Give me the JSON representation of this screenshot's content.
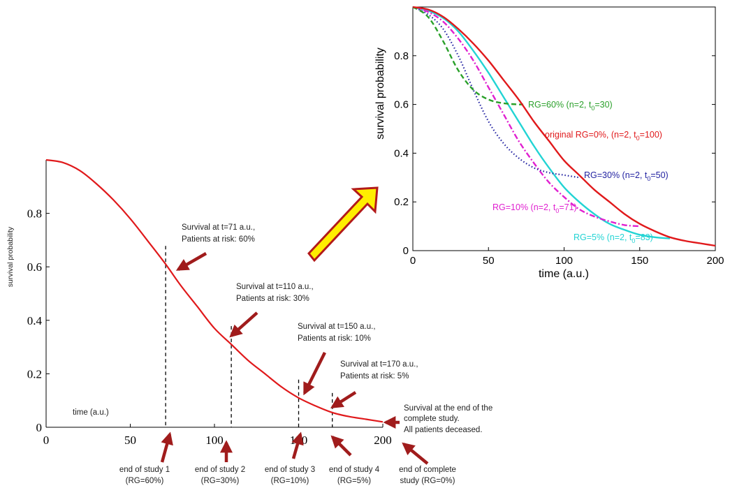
{
  "colors": {
    "main_curve": "#e0191b",
    "arrow": "#a01c1c",
    "big_arrow_fill": "#ffee00",
    "big_arrow_stroke": "#b21a1a",
    "rg60": "#2aa02a",
    "rg0": "#e0191b",
    "rg30": "#1f1fa0",
    "rg10": "#e020d0",
    "rg5": "#22d4d4"
  },
  "chart_data": [
    {
      "type": "line",
      "xlim": [
        0,
        200
      ],
      "ylim": [
        0,
        1
      ],
      "xticks": [
        "0",
        "50",
        "100",
        "150",
        "200"
      ],
      "yticks": [
        "0",
        "0.2",
        "0.4",
        "0.6",
        "0.8"
      ],
      "xlabel": "time (a.u.)",
      "ylabel": "survival probability",
      "grid": false,
      "series": [
        {
          "x": [
            0,
            10,
            20,
            30,
            40,
            50,
            60,
            71,
            80,
            90,
            100,
            110,
            120,
            130,
            140,
            150,
            160,
            170,
            180,
            190,
            200
          ],
          "y": [
            1.0,
            0.99,
            0.96,
            0.91,
            0.85,
            0.78,
            0.7,
            0.61,
            0.53,
            0.45,
            0.37,
            0.31,
            0.25,
            0.2,
            0.15,
            0.11,
            0.08,
            0.055,
            0.04,
            0.03,
            0.02
          ]
        }
      ],
      "study_ends": [
        {
          "t": 71,
          "y": 0.6,
          "note_line1": "Survival at t=71 a.u.,",
          "note_line2": "Patients at risk: 60%",
          "label_line1": "end of study 1",
          "label_line2": "(RG=60%)"
        },
        {
          "t": 110,
          "y": 0.3,
          "note_line1": "Survival at t=110 a.u.,",
          "note_line2": "Patients at risk: 30%",
          "label_line1": "end of study 2",
          "label_line2": "(RG=30%)"
        },
        {
          "t": 150,
          "y": 0.1,
          "note_line1": "Survival at t=150 a.u.,",
          "note_line2": "Patients at risk: 10%",
          "label_line1": "end of study 3",
          "label_line2": "(RG=10%)"
        },
        {
          "t": 170,
          "y": 0.05,
          "note_line1": "Survival at t=170 a.u.,",
          "note_line2": "Patients at risk: 5%",
          "label_line1": "end of study 4",
          "label_line2": "(RG=5%)"
        }
      ],
      "end_note": [
        "Survival at the end of the",
        "complete study.",
        "All patients deceased."
      ],
      "end_label": [
        "end of complete",
        "study (RG=0%)"
      ]
    },
    {
      "type": "line",
      "xlim": [
        0,
        200
      ],
      "ylim": [
        0,
        1
      ],
      "xticks": [
        "0",
        "50",
        "100",
        "150",
        "200"
      ],
      "yticks": [
        "0",
        "0.2",
        "0.4",
        "0.6",
        "0.8"
      ],
      "xlabel": "time (a.u.)",
      "ylabel": "survival probability",
      "grid": false,
      "series": [
        {
          "name": "original RG=0%, (n=2, t0=100)",
          "label_main": "original RG=0%, (n=2, t",
          "label_sub": "0",
          "label_end": "=100)",
          "style": "solid",
          "x": [
            0,
            10,
            20,
            30,
            40,
            50,
            60,
            70,
            80,
            90,
            100,
            110,
            120,
            130,
            140,
            150,
            160,
            170,
            180,
            190,
            200
          ],
          "y": [
            1.0,
            0.99,
            0.96,
            0.91,
            0.85,
            0.78,
            0.7,
            0.62,
            0.53,
            0.45,
            0.37,
            0.31,
            0.25,
            0.2,
            0.15,
            0.11,
            0.08,
            0.055,
            0.04,
            0.03,
            0.02
          ]
        },
        {
          "name": "RG=60% (n=2, t0=30)",
          "label_main": "RG=60% (n=2, t",
          "label_sub": "0",
          "label_end": "=30)",
          "style": "dashed",
          "x": [
            0,
            10,
            20,
            30,
            40,
            50,
            60,
            70,
            73
          ],
          "y": [
            1.0,
            0.96,
            0.86,
            0.74,
            0.66,
            0.62,
            0.605,
            0.6,
            0.6
          ]
        },
        {
          "name": "RG=30% (n=2, t0=50)",
          "label_main": "RG=30% (n=2, t",
          "label_sub": "0",
          "label_end": "=50)",
          "style": "dotted",
          "x": [
            0,
            10,
            20,
            30,
            40,
            50,
            60,
            70,
            80,
            90,
            100,
            110
          ],
          "y": [
            1.0,
            0.97,
            0.91,
            0.8,
            0.66,
            0.53,
            0.44,
            0.38,
            0.34,
            0.32,
            0.31,
            0.3
          ]
        },
        {
          "name": "RG=10% (n=2, t0=71)",
          "label_main": "RG=10% (n=2, t",
          "label_sub": "0",
          "label_end": "=71)",
          "style": "dashdot",
          "x": [
            0,
            10,
            20,
            30,
            40,
            50,
            60,
            70,
            80,
            90,
            100,
            110,
            120,
            130,
            140,
            150
          ],
          "y": [
            1.0,
            0.98,
            0.94,
            0.87,
            0.78,
            0.67,
            0.56,
            0.45,
            0.36,
            0.28,
            0.22,
            0.17,
            0.14,
            0.12,
            0.105,
            0.1
          ]
        },
        {
          "name": "RG=5% (n=2, t0=83)",
          "label_main": "RG=5% (n=2, t",
          "label_sub": "0",
          "label_end": "=83)",
          "style": "solid",
          "x": [
            0,
            10,
            20,
            30,
            40,
            50,
            60,
            70,
            80,
            90,
            100,
            110,
            120,
            130,
            140,
            150,
            160,
            170
          ],
          "y": [
            1.0,
            0.985,
            0.955,
            0.9,
            0.82,
            0.73,
            0.63,
            0.53,
            0.43,
            0.34,
            0.26,
            0.2,
            0.15,
            0.11,
            0.085,
            0.065,
            0.055,
            0.05
          ]
        }
      ]
    }
  ]
}
